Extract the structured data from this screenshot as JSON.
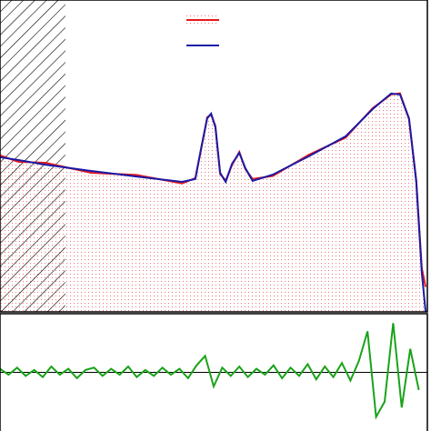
{
  "chart_data": [
    {
      "type": "line",
      "xlim": [
        0,
        100
      ],
      "ylim": [
        0,
        100
      ],
      "shaded_region": [
        0,
        15.3
      ],
      "x": [
        0,
        4.3,
        10.6,
        21.3,
        31.9,
        42.6,
        45.7,
        47.2,
        48.5,
        49.4,
        50.4,
        51.5,
        52.8,
        54.3,
        56.0,
        57.4,
        59.1,
        63.8,
        72.3,
        80.9,
        87.2,
        91.5,
        93.6,
        95.7,
        97.4,
        98.7,
        99.6
      ],
      "series": [
        {
          "color": "#e8191c",
          "fill": true,
          "values": [
            50.2,
            48.1,
            47.8,
            44.6,
            43.9,
            41.2,
            42.9,
            53.0,
            62.4,
            63.2,
            59.6,
            44.2,
            42.1,
            47.1,
            51.3,
            45.8,
            42.6,
            43.6,
            50.4,
            55.9,
            65.3,
            69.7,
            70.1,
            61.8,
            42.2,
            14.0,
            8.0
          ]
        },
        {
          "color": "#1a1aa6",
          "values": [
            49.6,
            48.7,
            47.2,
            45.2,
            43.4,
            41.7,
            42.6,
            53.4,
            62.1,
            63.6,
            59.2,
            44.6,
            41.7,
            47.5,
            51.0,
            46.1,
            42.0,
            44.0,
            49.9,
            56.3,
            65.0,
            70.0,
            69.7,
            62.1,
            41.7,
            12.5,
            0
          ]
        }
      ]
    },
    {
      "type": "line",
      "xlim": [
        0,
        100
      ],
      "ylim": [
        -5,
        5
      ],
      "x": [
        0,
        2,
        4,
        6,
        8,
        10,
        12,
        14,
        16,
        18,
        20,
        22,
        24,
        26,
        28,
        30,
        32,
        34,
        36,
        38,
        40,
        42,
        44,
        46,
        48,
        50,
        52,
        54,
        56,
        58,
        60,
        62,
        64,
        66,
        68,
        70,
        72,
        74,
        76,
        78,
        80,
        82,
        84,
        86,
        88,
        90,
        92,
        94,
        96,
        98
      ],
      "series": [
        {
          "color": "#19a319",
          "values": [
            0.3,
            -0.2,
            0.4,
            -0.3,
            0.2,
            -0.4,
            0.5,
            -0.2,
            0.3,
            -0.5,
            0.2,
            0.4,
            -0.3,
            0.3,
            -0.2,
            0.5,
            -0.4,
            0.2,
            -0.3,
            0.4,
            -0.2,
            0.3,
            -0.5,
            0.6,
            1.4,
            -1.2,
            0.4,
            -0.3,
            0.5,
            -0.4,
            0.3,
            -0.2,
            0.6,
            -0.5,
            0.4,
            -0.3,
            0.7,
            -0.6,
            0.5,
            -0.4,
            0.8,
            -0.7,
            1.0,
            3.5,
            -3.8,
            -2.5,
            4.2,
            -3.0,
            2.0,
            -1.5
          ]
        }
      ]
    }
  ]
}
